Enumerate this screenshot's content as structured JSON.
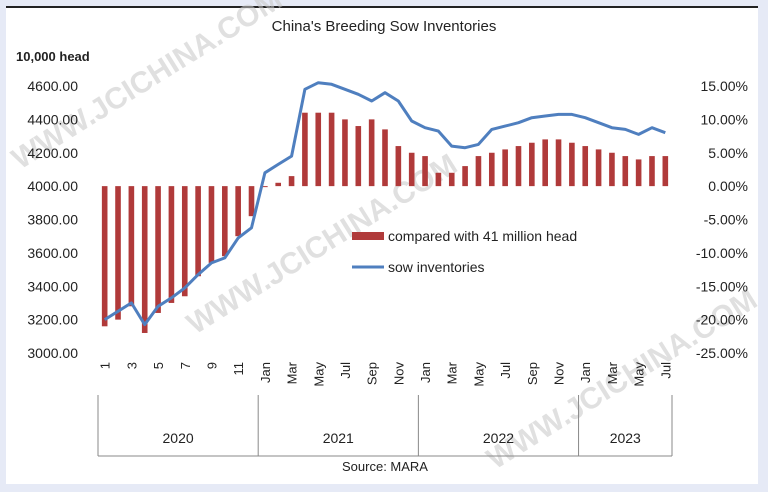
{
  "chart_data": {
    "type": "bar+line",
    "title": "China's Breeding Sow Inventories",
    "left_axis_unit": "10,000 head",
    "source": "Source: MARA",
    "watermark": "WWW.JCICHINA.COM",
    "left_axis": {
      "min": 3000,
      "max": 4600,
      "ticks": [
        "3000.00",
        "3200.00",
        "3400.00",
        "3600.00",
        "3800.00",
        "4000.00",
        "4200.00",
        "4400.00",
        "4600.00"
      ]
    },
    "right_axis": {
      "min": -25,
      "max": 15,
      "ticks": [
        "-25.00%",
        "-20.00%",
        "-15.00%",
        "-10.00%",
        "-5.00%",
        "0.00%",
        "5.00%",
        "10.00%",
        "15.00%"
      ]
    },
    "x_tick_labels": [
      "1",
      "",
      "3",
      "",
      "5",
      "",
      "7",
      "",
      "9",
      "",
      "11",
      "",
      "Jan",
      "",
      "Mar",
      "",
      "May",
      "",
      "Jul",
      "",
      "Sep",
      "",
      "Nov",
      "",
      "Jan",
      "",
      "Mar",
      "",
      "May",
      "",
      "Jul",
      "",
      "Sep",
      "",
      "Nov",
      "",
      "Jan",
      "",
      "Mar",
      "",
      "May",
      "",
      "Jul"
    ],
    "year_groups": [
      {
        "label": "2020",
        "start": 0,
        "end": 11
      },
      {
        "label": "2021",
        "start": 12,
        "end": 23
      },
      {
        "label": "2022",
        "start": 24,
        "end": 35
      },
      {
        "label": "2023",
        "start": 36,
        "end": 42
      }
    ],
    "legend": {
      "bar_label": "compared with 41 million head",
      "line_label": "sow inventories",
      "placement": "center"
    },
    "colors": {
      "bar": "#b03a3a",
      "line": "#4f7fbf"
    },
    "series": [
      {
        "name": "compared with 41 million head",
        "axis": "right",
        "values": [
          -21.0,
          -20.0,
          -18.0,
          -22.0,
          -19.0,
          -17.5,
          -16.5,
          -13.5,
          -11.5,
          -10.5,
          -7.5,
          -4.5,
          0.0,
          0.5,
          1.5,
          11.0,
          11.0,
          11.0,
          10.0,
          9.0,
          10.0,
          8.5,
          6.0,
          5.0,
          4.5,
          2.0,
          2.0,
          3.0,
          4.5,
          5.0,
          5.5,
          6.0,
          6.5,
          7.0,
          7.0,
          6.5,
          6.0,
          5.5,
          5.0,
          4.5,
          4.0,
          4.5,
          4.5
        ]
      },
      {
        "name": "sow inventories",
        "axis": "left",
        "values": [
          3200,
          3250,
          3300,
          3170,
          3280,
          3330,
          3390,
          3470,
          3540,
          3570,
          3690,
          3750,
          4080,
          4130,
          4180,
          4580,
          4620,
          4610,
          4580,
          4550,
          4510,
          4560,
          4510,
          4390,
          4350,
          4330,
          4240,
          4230,
          4250,
          4340,
          4360,
          4380,
          4410,
          4420,
          4430,
          4430,
          4410,
          4380,
          4350,
          4340,
          4310,
          4350,
          4320
        ]
      }
    ]
  }
}
